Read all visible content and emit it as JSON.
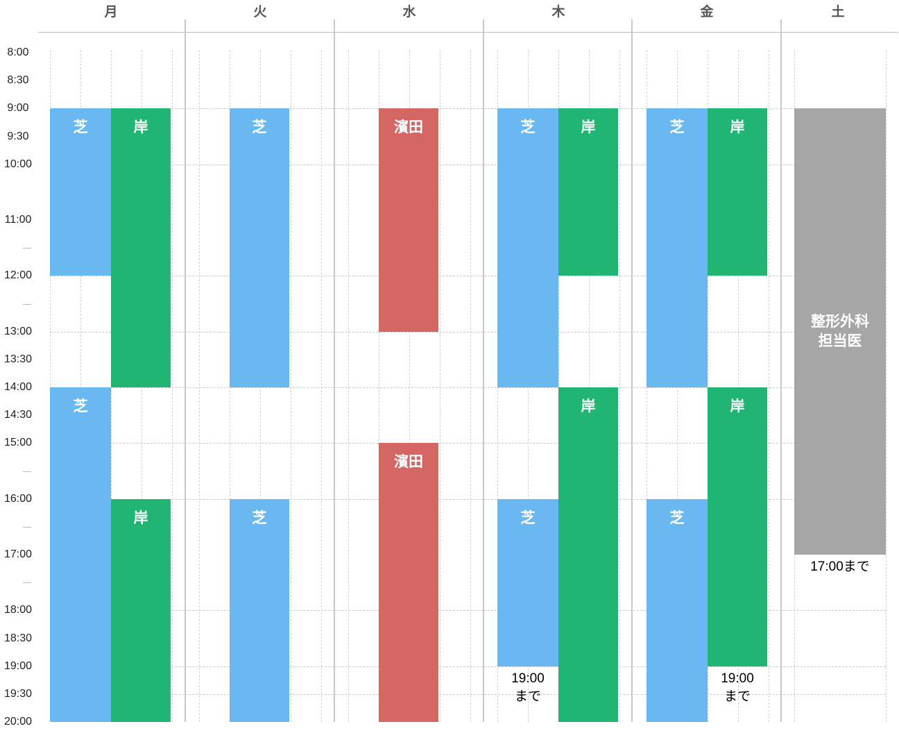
{
  "days": [
    "月",
    "火",
    "水",
    "木",
    "金",
    "土"
  ],
  "time_labels": [
    {
      "time": "8:00",
      "min": 0
    },
    {
      "time": "8:30",
      "min": 30
    },
    {
      "time": "9:00",
      "min": 60
    },
    {
      "time": "9:30",
      "min": 90
    },
    {
      "time": "10:00",
      "min": 120
    },
    {
      "time": "11:00",
      "min": 180
    },
    {
      "time": "12:00",
      "min": 240
    },
    {
      "time": "13:00",
      "min": 300
    },
    {
      "time": "13:30",
      "min": 330
    },
    {
      "time": "14:00",
      "min": 360
    },
    {
      "time": "14:30",
      "min": 390
    },
    {
      "time": "15:00",
      "min": 420
    },
    {
      "time": "16:00",
      "min": 480
    },
    {
      "time": "17:00",
      "min": 540
    },
    {
      "time": "18:00",
      "min": 600
    },
    {
      "time": "18:30",
      "min": 630
    },
    {
      "time": "19:00",
      "min": 660
    },
    {
      "time": "19:30",
      "min": 690
    },
    {
      "time": "20:00",
      "min": 720
    }
  ],
  "tick_marks": [
    210,
    270,
    450,
    510,
    570
  ],
  "grid_lines": [
    60,
    120,
    240,
    300,
    360,
    420,
    480,
    600,
    660,
    690
  ],
  "colors": {
    "shiba": "#6ab8f2",
    "kishi": "#21b573",
    "hamada": "#d46663",
    "ortho": "#a6a6a6"
  },
  "blocks": [
    {
      "day": 0,
      "lane": 0,
      "start": 60,
      "end": 240,
      "label": "芝",
      "color": "shiba"
    },
    {
      "day": 0,
      "lane": 1,
      "start": 60,
      "end": 360,
      "label": "岸",
      "color": "kishi"
    },
    {
      "day": 0,
      "lane": 0,
      "start": 360,
      "end": 720,
      "label": "芝",
      "color": "shiba"
    },
    {
      "day": 0,
      "lane": 1,
      "start": 480,
      "end": 720,
      "label": "岸",
      "color": "kishi"
    },
    {
      "day": 1,
      "lane": "c",
      "start": 60,
      "end": 360,
      "label": "芝",
      "color": "shiba"
    },
    {
      "day": 1,
      "lane": "c",
      "start": 480,
      "end": 720,
      "label": "芝",
      "color": "shiba"
    },
    {
      "day": 2,
      "lane": "c",
      "start": 60,
      "end": 300,
      "label": "濱田",
      "color": "hamada"
    },
    {
      "day": 2,
      "lane": "c",
      "start": 420,
      "end": 720,
      "label": "濱田",
      "color": "hamada"
    },
    {
      "day": 3,
      "lane": 0,
      "start": 60,
      "end": 360,
      "label": "芝",
      "color": "shiba"
    },
    {
      "day": 3,
      "lane": 1,
      "start": 60,
      "end": 240,
      "label": "岸",
      "color": "kishi"
    },
    {
      "day": 3,
      "lane": 1,
      "start": 360,
      "end": 720,
      "label": "岸",
      "color": "kishi"
    },
    {
      "day": 3,
      "lane": 0,
      "start": 480,
      "end": 660,
      "label": "芝",
      "color": "shiba"
    },
    {
      "day": 4,
      "lane": 0,
      "start": 60,
      "end": 360,
      "label": "芝",
      "color": "shiba"
    },
    {
      "day": 4,
      "lane": 1,
      "start": 60,
      "end": 240,
      "label": "岸",
      "color": "kishi"
    },
    {
      "day": 4,
      "lane": 1,
      "start": 360,
      "end": 660,
      "label": "岸",
      "color": "kishi"
    },
    {
      "day": 4,
      "lane": 0,
      "start": 480,
      "end": 720,
      "label": "芝",
      "color": "shiba"
    },
    {
      "day": 5,
      "lane": "full",
      "start": 60,
      "end": 540,
      "label": "整形外科\n担当医",
      "color": "ortho",
      "centered": true
    }
  ],
  "notes": [
    {
      "day": 3,
      "lane": 0,
      "min": 660,
      "text": "19:00\nまで"
    },
    {
      "day": 4,
      "lane": 1,
      "min": 660,
      "text": "19:00\nまで"
    },
    {
      "day": 5,
      "lane": "full",
      "min": 540,
      "text": "17:00まで"
    }
  ]
}
